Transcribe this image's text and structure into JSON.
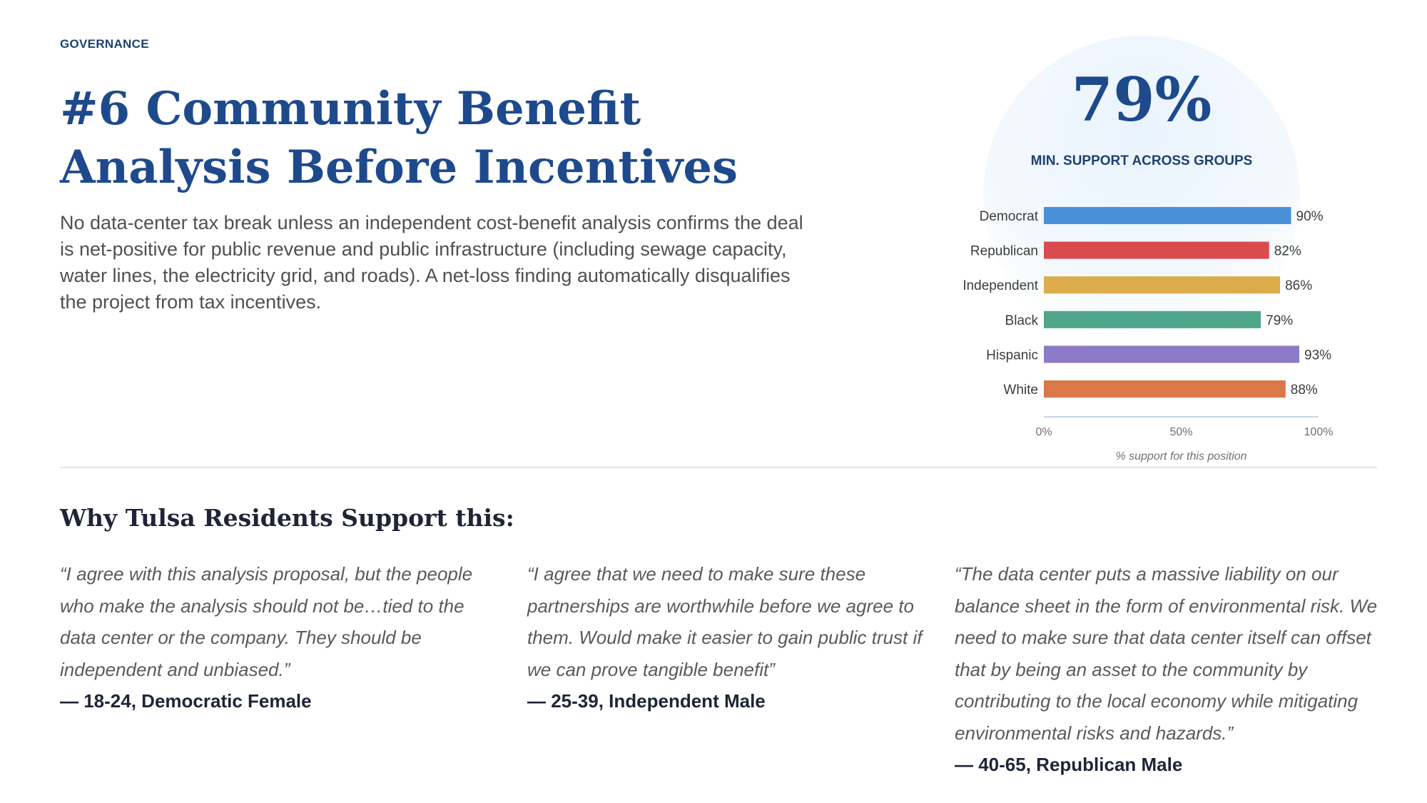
{
  "section_tag": "GOVERNANCE",
  "title": "#6 Community Benefit Analysis Before Incentives",
  "description": "No data-center tax break unless an independent cost-benefit analysis confirms the deal is net-positive for public revenue and public infrastructure (including sewage capacity, water lines, the electricity grid, and roads). A net-loss finding automatically disqualifies the project from tax incentives.",
  "headline_stat": {
    "value": "79%",
    "label": "MIN. SUPPORT ACROSS GROUPS"
  },
  "chart_data": {
    "type": "bar",
    "orientation": "horizontal",
    "categories": [
      "Democrat",
      "Republican",
      "Independent",
      "Black",
      "Hispanic",
      "White"
    ],
    "values": [
      90,
      82,
      86,
      79,
      93,
      88
    ],
    "value_labels": [
      "90%",
      "82%",
      "86%",
      "79%",
      "93%",
      "88%"
    ],
    "colors": [
      "#4a90d9",
      "#db4a4f",
      "#dcab4a",
      "#4fa68b",
      "#8c7bc6",
      "#db7749"
    ],
    "xlim": [
      0,
      100
    ],
    "xticks": [
      0,
      50,
      100
    ],
    "xtick_labels": [
      "0%",
      "50%",
      "100%"
    ],
    "xlabel": "% support for this position",
    "grid": false
  },
  "why_heading": "Why Tulsa Residents Support this:",
  "quotes": [
    {
      "text": "“I agree with this analysis proposal, but the people who make the analysis should not be…tied to the data center or the company. They should be independent and unbiased.”",
      "attribution": "— 18-24, Democratic Female"
    },
    {
      "text": "“I agree that we need to make sure these partnerships are worthwhile before we agree to them. Would make it easier to gain public trust if we can prove tangible benefit”",
      "attribution": "— 25-39, Independent Male"
    },
    {
      "text": "“The data center puts a massive liability on our balance sheet in the form of environmental risk. We need to make sure that data center itself can offset that by being an asset to the community by contributing to the local economy while mitigating environmental risks and hazards.”",
      "attribution": "— 40-65, Republican Male"
    }
  ]
}
